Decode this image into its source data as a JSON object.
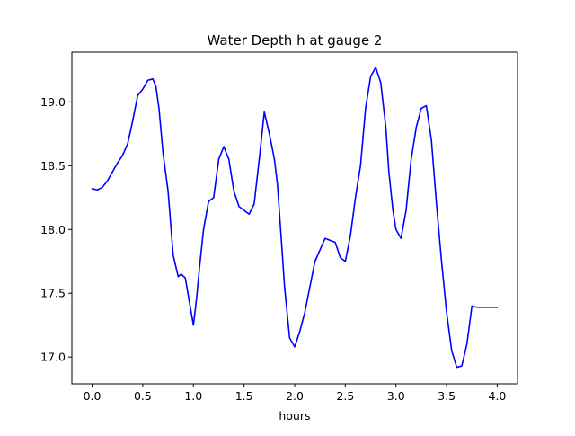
{
  "chart_data": {
    "type": "line",
    "title": "Water Depth h at gauge 2",
    "xlabel": "hours",
    "ylabel": "",
    "xlim": [
      -0.2,
      4.2
    ],
    "ylim": [
      16.79,
      19.39
    ],
    "xticks": [
      0.0,
      0.5,
      1.0,
      1.5,
      2.0,
      2.5,
      3.0,
      3.5,
      4.0
    ],
    "xtick_labels": [
      "0.0",
      "0.5",
      "1.0",
      "1.5",
      "2.0",
      "2.5",
      "3.0",
      "3.5",
      "4.0"
    ],
    "yticks": [
      17.0,
      17.5,
      18.0,
      18.5,
      19.0
    ],
    "ytick_labels": [
      "17.0",
      "17.5",
      "18.0",
      "18.5",
      "19.0"
    ],
    "grid": false,
    "series": [
      {
        "color": "#0000ff",
        "x": [
          0.0,
          0.05,
          0.1,
          0.15,
          0.2,
          0.25,
          0.3,
          0.35,
          0.4,
          0.45,
          0.5,
          0.55,
          0.6,
          0.63,
          0.66,
          0.7,
          0.75,
          0.8,
          0.85,
          0.88,
          0.92,
          0.95,
          1.0,
          1.03,
          1.06,
          1.1,
          1.15,
          1.2,
          1.25,
          1.3,
          1.35,
          1.4,
          1.45,
          1.5,
          1.55,
          1.6,
          1.65,
          1.7,
          1.75,
          1.8,
          1.83,
          1.87,
          1.9,
          1.95,
          2.0,
          2.05,
          2.1,
          2.15,
          2.2,
          2.3,
          2.4,
          2.45,
          2.5,
          2.55,
          2.6,
          2.65,
          2.7,
          2.75,
          2.8,
          2.85,
          2.9,
          2.93,
          2.97,
          3.0,
          3.05,
          3.1,
          3.15,
          3.2,
          3.25,
          3.3,
          3.35,
          3.4,
          3.45,
          3.5,
          3.55,
          3.6,
          3.65,
          3.7,
          3.75,
          3.8,
          3.85,
          3.9,
          3.95,
          4.0
        ],
        "y": [
          18.32,
          18.31,
          18.33,
          18.38,
          18.45,
          18.52,
          18.58,
          18.67,
          18.85,
          19.05,
          19.1,
          19.17,
          19.18,
          19.12,
          18.95,
          18.6,
          18.3,
          17.8,
          17.63,
          17.65,
          17.62,
          17.48,
          17.25,
          17.45,
          17.7,
          18.0,
          18.22,
          18.25,
          18.55,
          18.65,
          18.55,
          18.3,
          18.18,
          18.15,
          18.12,
          18.2,
          18.55,
          18.92,
          18.75,
          18.55,
          18.35,
          17.9,
          17.55,
          17.15,
          17.08,
          17.2,
          17.35,
          17.55,
          17.75,
          17.93,
          17.9,
          17.78,
          17.75,
          17.95,
          18.25,
          18.5,
          18.95,
          19.2,
          19.27,
          19.15,
          18.8,
          18.45,
          18.15,
          18.0,
          17.93,
          18.15,
          18.55,
          18.8,
          18.95,
          18.97,
          18.7,
          18.2,
          17.75,
          17.35,
          17.05,
          16.92,
          16.93,
          17.1,
          17.4,
          17.39,
          17.39,
          17.39,
          17.39,
          17.39
        ]
      }
    ]
  }
}
